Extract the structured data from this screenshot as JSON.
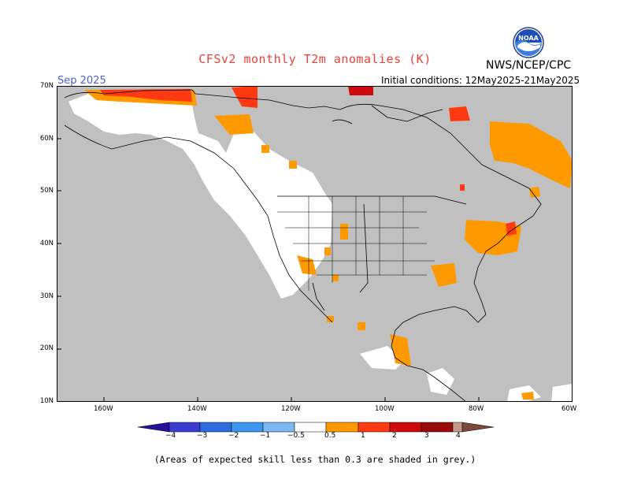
{
  "header": {
    "title": "CFSv2 monthly T2m anomalies (K)",
    "month": "Sep 2025",
    "initial_conditions": "Initial conditions: 12May2025-21May2025",
    "agency": "NWS/NCEP/CPC",
    "logo_text": "NOAA"
  },
  "map": {
    "lat_labels": [
      "70N",
      "60N",
      "50N",
      "40N",
      "30N",
      "20N",
      "10N"
    ],
    "lon_labels": [
      "160W",
      "140W",
      "120W",
      "100W",
      "80W",
      "60W"
    ],
    "lat_range": [
      10,
      70
    ],
    "lon_range": [
      -170,
      -60
    ],
    "colors": {
      "ocean": "#c0c0c0",
      "low_skill": "#c0c0c0",
      "neutral": "#ffffff",
      "coast": "#000000"
    }
  },
  "colorbar": {
    "labels": [
      "−4",
      "−3",
      "−2",
      "−1",
      "−0.5",
      "0.5",
      "1",
      "2",
      "3",
      "4"
    ],
    "colors": [
      "#2a0f99",
      "#3c3cd2",
      "#2f6bdc",
      "#3d97f0",
      "#7eb8f4",
      "#ffffff",
      "#ff9900",
      "#ff3a12",
      "#cc0a0a",
      "#9a0a0a",
      "#c49a8a",
      "#7a4b3a"
    ]
  },
  "footnote": "(Areas of expected skill less than 0.3 are shaded in grey.)"
}
